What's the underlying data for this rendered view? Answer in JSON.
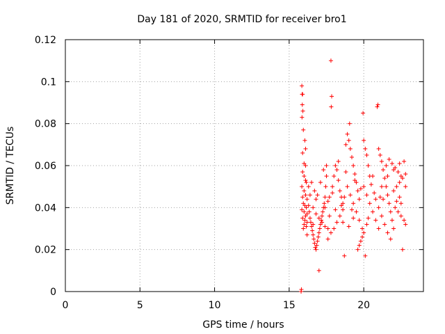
{
  "chart_data": {
    "type": "scatter",
    "title": "Day 181 of 2020, SRMTID for receiver bro1",
    "xlabel": "GPS time / hours",
    "ylabel": "SRMTID / TECUs",
    "xlim": [
      0,
      24
    ],
    "ylim": [
      0,
      0.12
    ],
    "xticks": [
      0,
      5,
      10,
      15,
      20
    ],
    "yticks": [
      0,
      0.02,
      0.04,
      0.06,
      0.08,
      0.1,
      0.12
    ],
    "xtick_labels": [
      "0",
      "5",
      "10",
      "15",
      "20"
    ],
    "ytick_labels": [
      "0",
      "0.02",
      "0.04",
      "0.06",
      "0.08",
      "0.1",
      "0.12"
    ],
    "grid": true,
    "marker": "+",
    "color": "#ff0000",
    "series": [
      {
        "name": "SRMTID",
        "points": [
          [
            15.8,
            0.0
          ],
          [
            15.82,
            0.001
          ],
          [
            15.85,
            0.098
          ],
          [
            15.87,
            0.094
          ],
          [
            15.9,
            0.094
          ],
          [
            15.88,
            0.089
          ],
          [
            15.92,
            0.086
          ],
          [
            15.86,
            0.083
          ],
          [
            15.95,
            0.077
          ],
          [
            16.05,
            0.072
          ],
          [
            16.1,
            0.068
          ],
          [
            15.9,
            0.066
          ],
          [
            16.0,
            0.061
          ],
          [
            16.1,
            0.06
          ],
          [
            15.9,
            0.057
          ],
          [
            16.0,
            0.055
          ],
          [
            16.1,
            0.053
          ],
          [
            16.15,
            0.052
          ],
          [
            15.85,
            0.05
          ],
          [
            16.0,
            0.048
          ],
          [
            16.1,
            0.046
          ],
          [
            15.9,
            0.045
          ],
          [
            16.2,
            0.044
          ],
          [
            15.95,
            0.042
          ],
          [
            16.05,
            0.041
          ],
          [
            16.15,
            0.04
          ],
          [
            15.85,
            0.039
          ],
          [
            16.0,
            0.038
          ],
          [
            16.2,
            0.037
          ],
          [
            16.1,
            0.036
          ],
          [
            15.9,
            0.035
          ],
          [
            16.05,
            0.034
          ],
          [
            16.2,
            0.033
          ],
          [
            16.0,
            0.032
          ],
          [
            16.15,
            0.031
          ],
          [
            15.95,
            0.03
          ],
          [
            16.3,
            0.041
          ],
          [
            16.35,
            0.038
          ],
          [
            16.4,
            0.035
          ],
          [
            16.45,
            0.033
          ],
          [
            16.5,
            0.031
          ],
          [
            16.55,
            0.029
          ],
          [
            16.6,
            0.027
          ],
          [
            16.65,
            0.025
          ],
          [
            16.7,
            0.023
          ],
          [
            16.75,
            0.021
          ],
          [
            16.8,
            0.02
          ],
          [
            16.85,
            0.022
          ],
          [
            16.9,
            0.024
          ],
          [
            16.95,
            0.026
          ],
          [
            17.0,
            0.01
          ],
          [
            17.05,
            0.03
          ],
          [
            17.1,
            0.032
          ],
          [
            17.15,
            0.034
          ],
          [
            17.2,
            0.036
          ],
          [
            17.25,
            0.038
          ],
          [
            17.3,
            0.04
          ],
          [
            17.35,
            0.042
          ],
          [
            17.4,
            0.045
          ],
          [
            17.45,
            0.05
          ],
          [
            17.5,
            0.055
          ],
          [
            16.3,
            0.05
          ],
          [
            16.5,
            0.052
          ],
          [
            16.7,
            0.048
          ],
          [
            16.9,
            0.046
          ],
          [
            17.1,
            0.052
          ],
          [
            17.3,
            0.058
          ],
          [
            17.5,
            0.06
          ],
          [
            16.6,
            0.04
          ],
          [
            16.8,
            0.037
          ],
          [
            17.0,
            0.035
          ],
          [
            17.2,
            0.033
          ],
          [
            17.4,
            0.031
          ],
          [
            17.6,
            0.03
          ],
          [
            17.8,
            0.11
          ],
          [
            17.85,
            0.093
          ],
          [
            17.82,
            0.088
          ],
          [
            17.7,
            0.045
          ],
          [
            17.9,
            0.05
          ],
          [
            18.0,
            0.055
          ],
          [
            18.1,
            0.06
          ],
          [
            18.2,
            0.058
          ],
          [
            18.3,
            0.053
          ],
          [
            18.4,
            0.048
          ],
          [
            18.5,
            0.045
          ],
          [
            18.6,
            0.042
          ],
          [
            17.6,
            0.025
          ],
          [
            17.8,
            0.028
          ],
          [
            18.0,
            0.03
          ],
          [
            18.2,
            0.033
          ],
          [
            18.4,
            0.036
          ],
          [
            18.6,
            0.039
          ],
          [
            18.7,
            0.017
          ],
          [
            18.8,
            0.07
          ],
          [
            18.9,
            0.075
          ],
          [
            19.0,
            0.072
          ],
          [
            19.1,
            0.068
          ],
          [
            19.2,
            0.064
          ],
          [
            19.05,
            0.08
          ],
          [
            19.3,
            0.06
          ],
          [
            19.4,
            0.056
          ],
          [
            19.5,
            0.052
          ],
          [
            19.6,
            0.048
          ],
          [
            19.7,
            0.044
          ],
          [
            18.7,
            0.045
          ],
          [
            18.9,
            0.05
          ],
          [
            19.1,
            0.046
          ],
          [
            19.3,
            0.042
          ],
          [
            19.5,
            0.038
          ],
          [
            19.7,
            0.034
          ],
          [
            19.6,
            0.02
          ],
          [
            19.7,
            0.022
          ],
          [
            19.8,
            0.024
          ],
          [
            19.9,
            0.026
          ],
          [
            20.0,
            0.028
          ],
          [
            20.1,
            0.017
          ],
          [
            19.95,
            0.085
          ],
          [
            20.0,
            0.072
          ],
          [
            20.1,
            0.068
          ],
          [
            20.2,
            0.065
          ],
          [
            20.3,
            0.06
          ],
          [
            20.4,
            0.055
          ],
          [
            20.0,
            0.05
          ],
          [
            20.2,
            0.046
          ],
          [
            20.4,
            0.042
          ],
          [
            20.6,
            0.038
          ],
          [
            20.8,
            0.034
          ],
          [
            21.0,
            0.03
          ],
          [
            20.9,
            0.088
          ],
          [
            20.95,
            0.089
          ],
          [
            21.0,
            0.068
          ],
          [
            21.1,
            0.065
          ],
          [
            21.2,
            0.062
          ],
          [
            21.3,
            0.058
          ],
          [
            21.4,
            0.054
          ],
          [
            21.5,
            0.05
          ],
          [
            21.6,
            0.046
          ],
          [
            21.7,
            0.042
          ],
          [
            21.8,
            0.038
          ],
          [
            21.9,
            0.034
          ],
          [
            21.0,
            0.04
          ],
          [
            21.2,
            0.036
          ],
          [
            21.4,
            0.032
          ],
          [
            21.6,
            0.028
          ],
          [
            21.8,
            0.025
          ],
          [
            22.0,
            0.03
          ],
          [
            21.5,
            0.06
          ],
          [
            21.7,
            0.063
          ],
          [
            21.9,
            0.061
          ],
          [
            22.1,
            0.059
          ],
          [
            22.3,
            0.057
          ],
          [
            22.5,
            0.055
          ],
          [
            22.0,
            0.048
          ],
          [
            22.2,
            0.05
          ],
          [
            22.4,
            0.052
          ],
          [
            22.6,
            0.054
          ],
          [
            22.8,
            0.056
          ],
          [
            22.7,
            0.062
          ],
          [
            22.1,
            0.04
          ],
          [
            22.3,
            0.038
          ],
          [
            22.5,
            0.036
          ],
          [
            22.7,
            0.034
          ],
          [
            22.8,
            0.032
          ],
          [
            22.6,
            0.02
          ],
          [
            22.4,
            0.045
          ],
          [
            22.2,
            0.043
          ],
          [
            21.3,
            0.044
          ],
          [
            20.7,
            0.047
          ],
          [
            20.5,
            0.051
          ],
          [
            20.3,
            0.035
          ],
          [
            19.2,
            0.039
          ],
          [
            18.5,
            0.041
          ],
          [
            17.6,
            0.043
          ],
          [
            16.8,
            0.044
          ],
          [
            16.4,
            0.046
          ],
          [
            17.9,
            0.047
          ],
          [
            18.3,
            0.062
          ],
          [
            18.8,
            0.057
          ],
          [
            19.4,
            0.053
          ],
          [
            19.8,
            0.049
          ],
          [
            20.6,
            0.055
          ],
          [
            21.1,
            0.045
          ],
          [
            16.2,
            0.027
          ],
          [
            16.6,
            0.032
          ],
          [
            17.0,
            0.028
          ],
          [
            17.4,
            0.04
          ],
          [
            17.7,
            0.036
          ],
          [
            18.1,
            0.039
          ],
          [
            18.6,
            0.033
          ],
          [
            19.0,
            0.031
          ],
          [
            19.3,
            0.035
          ],
          [
            19.9,
            0.03
          ],
          [
            20.2,
            0.032
          ],
          [
            20.8,
            0.044
          ],
          [
            21.2,
            0.05
          ],
          [
            21.6,
            0.055
          ],
          [
            22.0,
            0.058
          ],
          [
            22.4,
            0.061
          ],
          [
            22.8,
            0.05
          ],
          [
            22.5,
            0.042
          ]
        ]
      }
    ]
  }
}
